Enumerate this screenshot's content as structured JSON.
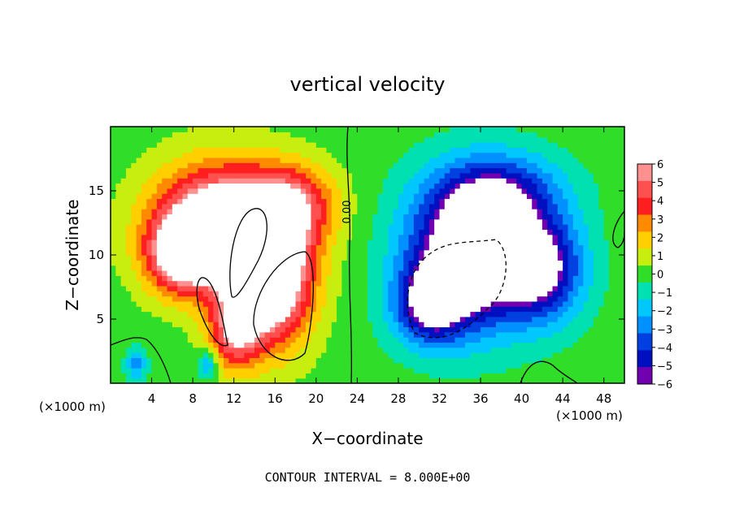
{
  "chart_data": {
    "type": "heatmap",
    "title": "vertical velocity",
    "xlabel": "X−coordinate",
    "ylabel": "Z−coordinate",
    "x_unit_left": "(×1000 m)",
    "x_unit_right": "(×1000 m)",
    "footer": "CONTOUR INTERVAL = 8.000E+00",
    "contour_label": "0.00",
    "xlim": [
      0,
      50
    ],
    "ylim": [
      0,
      20
    ],
    "x_ticks": [
      4,
      8,
      12,
      16,
      20,
      24,
      28,
      32,
      36,
      40,
      44,
      48
    ],
    "x_tick_labels": [
      "4",
      "8",
      "12",
      "16",
      "20",
      "24",
      "28",
      "32",
      "36",
      "40",
      "44",
      "48"
    ],
    "y_ticks": [
      5,
      10,
      15
    ],
    "y_tick_labels": [
      "5",
      "10",
      "15"
    ],
    "colorbar": {
      "min": -6,
      "max": 6,
      "labels": [
        "6",
        "5",
        "4",
        "3",
        "2",
        "1",
        "0",
        "−1",
        "−2",
        "−3",
        "−4",
        "−5",
        "−6"
      ],
      "colors": [
        "#ff9090",
        "#ff5050",
        "#ff1f1f",
        "#ff8a00",
        "#ffcf00",
        "#c8ee10",
        "#30dd28",
        "#00e0b0",
        "#00c8ff",
        "#0090ff",
        "#0040e0",
        "#0010c0",
        "#7000b0"
      ]
    },
    "series": [
      {
        "sign": "positive",
        "cells": [
          {
            "x": 11,
            "z": 12.5,
            "amp": 9,
            "sx": 6.5,
            "sz": 4.5
          },
          {
            "x": 15.5,
            "z": 8,
            "amp": 9,
            "sx": 4,
            "sz": 5
          },
          {
            "x": 7,
            "z": 10,
            "amp": 6,
            "sx": 3.5,
            "sz": 3
          },
          {
            "x": 12,
            "z": 4,
            "amp": 5,
            "sx": 2.5,
            "sz": 3
          },
          {
            "x": 18,
            "z": 14,
            "amp": 4,
            "sx": 4,
            "sz": 3
          }
        ]
      },
      {
        "sign": "negative",
        "cells": [
          {
            "x": 35,
            "z": 10,
            "amp": -9,
            "sx": 6,
            "sz": 5.5
          },
          {
            "x": 42,
            "z": 9,
            "amp": -6,
            "sx": 4,
            "sz": 4
          },
          {
            "x": 31,
            "z": 6,
            "amp": -5,
            "sx": 3.5,
            "sz": 3
          },
          {
            "x": 38,
            "z": 15,
            "amp": -4,
            "sx": 6,
            "sz": 3
          },
          {
            "x": 2.5,
            "z": 1.5,
            "amp": -3,
            "sx": 1,
            "sz": 1.2
          },
          {
            "x": 9.5,
            "z": 1.5,
            "amp": -3,
            "sx": 1,
            "sz": 1.2
          }
        ]
      }
    ],
    "grid": false,
    "legend": "right"
  }
}
